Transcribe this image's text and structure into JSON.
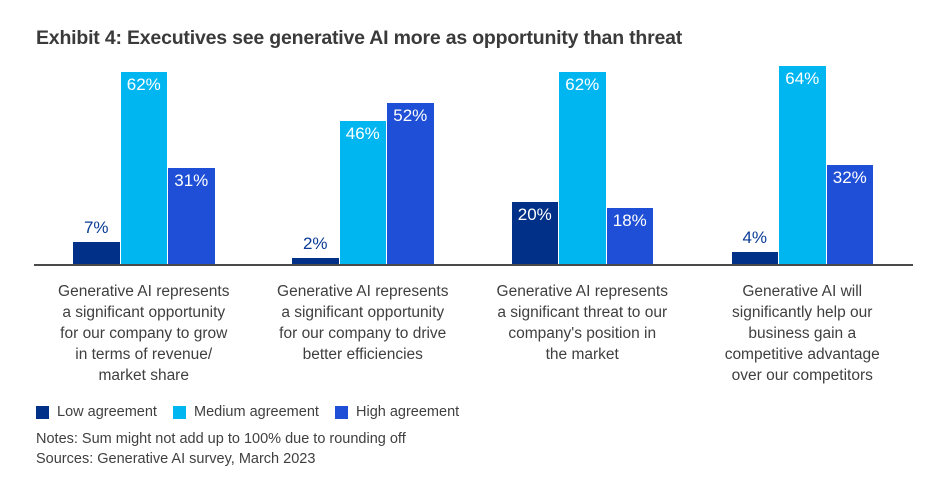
{
  "title": "Exhibit 4: Executives see generative AI more as opportunity than threat",
  "notes": "Notes: Sum might not add up to 100% due to rounding off",
  "sources": "Sources: Generative AI survey, March 2023",
  "colors": {
    "low": "#003087",
    "medium": "#00B6F1",
    "high": "#1E4FD6",
    "axis": "#4A4A4A",
    "title_text": "#3A3A3A",
    "body_text": "#3F3F3F",
    "label_inside": "#FFFFFF",
    "label_above": "#0A3A96"
  },
  "chart_data": {
    "type": "bar",
    "grouped": true,
    "title": "Exhibit 4: Executives see generative AI more as opportunity than threat",
    "xlabel": "",
    "ylabel": "",
    "ylim": [
      0,
      70
    ],
    "grid": false,
    "legend_position": "bottom",
    "value_suffix": "%",
    "categories": [
      "Generative AI represents a significant opportunity for our company to grow in terms of revenue/ market share",
      "Generative AI represents a significant opportunity for our company to drive better efficiencies",
      "Generative AI represents a significant threat to our company's position in the market",
      "Generative AI will significantly help our business gain a competitive advantage over our competitors"
    ],
    "category_lines": [
      [
        "Generative AI represents",
        "a significant opportunity",
        "for our company to grow",
        "in terms of revenue/",
        "market share"
      ],
      [
        "Generative AI represents",
        "a significant opportunity",
        "for our company to drive",
        "better efficiencies"
      ],
      [
        "Generative AI represents",
        "a significant threat to our",
        "company's position in",
        "the market"
      ],
      [
        "Generative AI will",
        "significantly help our",
        "business gain a",
        "competitive advantage",
        "over our competitors"
      ]
    ],
    "series": [
      {
        "name": "Low agreement",
        "color_key": "low",
        "values": [
          7,
          2,
          20,
          4
        ]
      },
      {
        "name": "Medium agreement",
        "color_key": "medium",
        "values": [
          62,
          46,
          62,
          64
        ]
      },
      {
        "name": "High agreement",
        "color_key": "high",
        "values": [
          31,
          52,
          18,
          32
        ]
      }
    ]
  }
}
